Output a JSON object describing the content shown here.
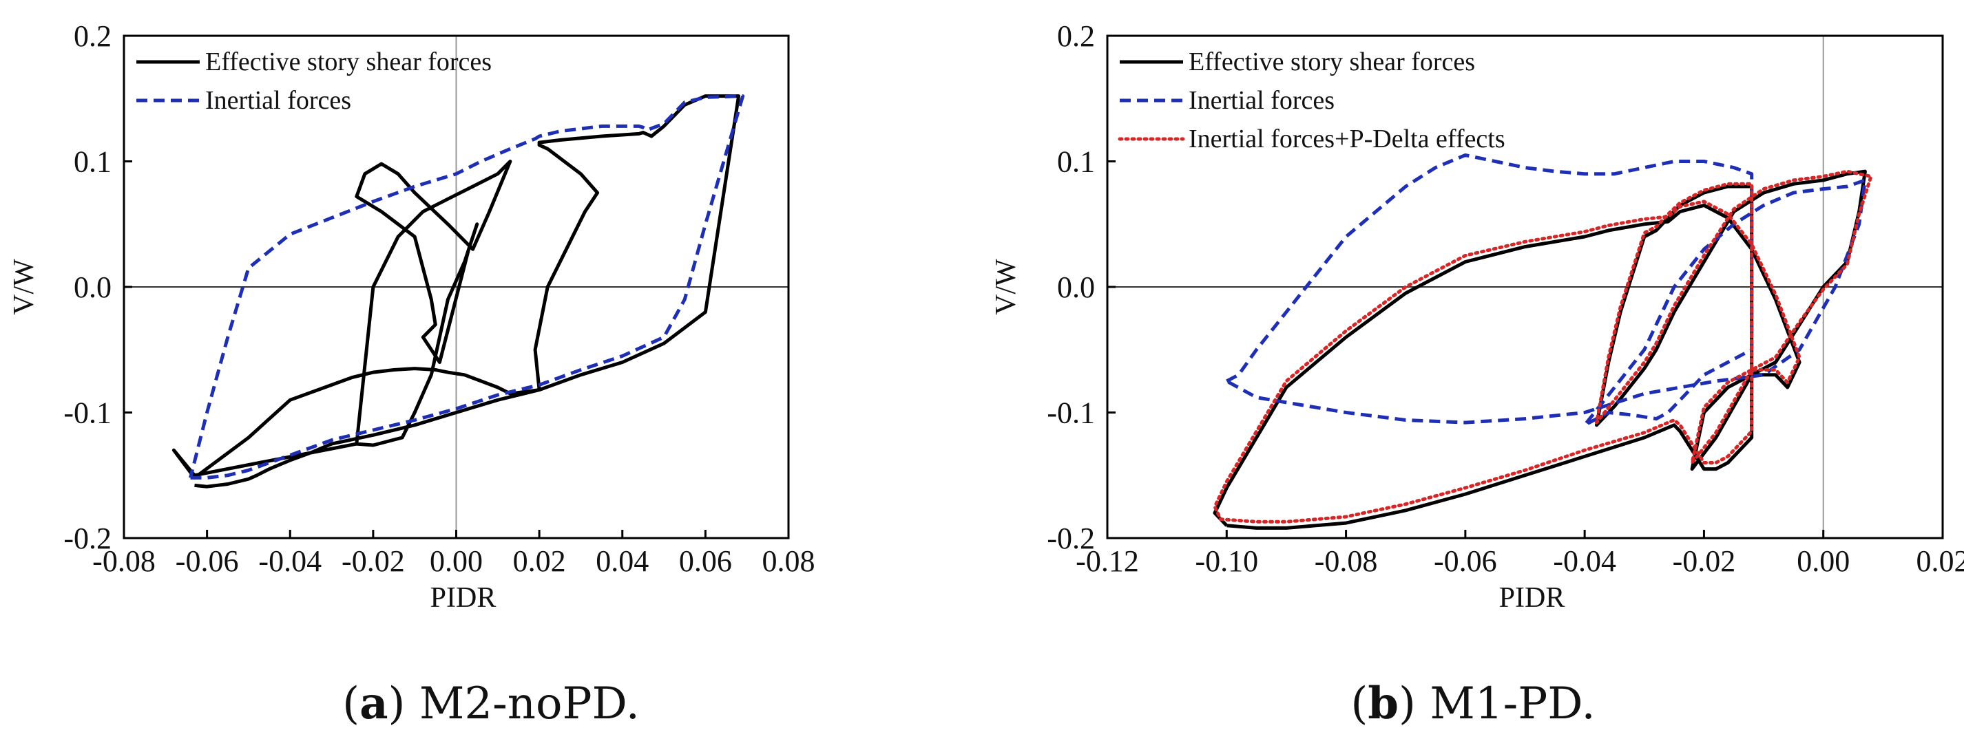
{
  "chart_data": [
    {
      "id": "a",
      "type": "line",
      "caption_letter": "a",
      "caption_text": "M2-noPD.",
      "xlabel": "PIDR",
      "ylabel": "V/W",
      "xlim": [
        -0.08,
        0.08
      ],
      "ylim": [
        -0.2,
        0.2
      ],
      "xticks": [
        -0.08,
        -0.06,
        -0.04,
        -0.02,
        0.0,
        0.02,
        0.04,
        0.06,
        0.08
      ],
      "xtick_labels": [
        "-0.08",
        "-0.06",
        "-0.04",
        "-0.02",
        "0.00",
        "0.02",
        "0.04",
        "0.06",
        "0.08"
      ],
      "yticks": [
        -0.2,
        -0.1,
        0.0,
        0.1,
        0.2
      ],
      "ytick_labels": [
        "-0.2",
        "-0.1",
        "0.0",
        "0.1",
        "0.2"
      ],
      "legend_position": "top-left",
      "series": [
        {
          "name": "Effective story shear forces",
          "color": "#000000",
          "style": "solid",
          "x": [
            -0.063,
            -0.06,
            -0.055,
            -0.05,
            -0.048,
            -0.045,
            -0.04,
            -0.035,
            -0.03,
            -0.02,
            -0.01,
            0.0,
            0.01,
            0.02,
            0.03,
            0.04,
            0.05,
            0.06,
            0.068,
            0.06,
            0.055,
            0.05,
            0.047,
            0.045,
            0.044,
            0.035,
            0.025,
            0.02,
            0.02,
            0.022,
            0.026,
            0.03,
            0.034,
            0.031,
            0.028,
            0.022,
            0.019,
            0.02,
            0.013,
            0.01,
            0.006,
            0.002,
            -0.002,
            -0.005,
            -0.01,
            -0.015,
            -0.02,
            -0.025,
            -0.03,
            -0.04,
            -0.05,
            -0.063,
            -0.068,
            -0.063,
            -0.024,
            -0.02,
            -0.013,
            -0.01,
            -0.006,
            -0.004,
            -0.002,
            0.002,
            0.005,
            0.003,
            -0.004,
            -0.008,
            -0.005,
            -0.006,
            -0.01,
            -0.018,
            -0.024,
            -0.022,
            -0.018,
            -0.014,
            -0.01,
            -0.002,
            0.004,
            0.008,
            0.013,
            0.01,
            0.004,
            -0.002,
            -0.008,
            -0.014,
            -0.02,
            -0.024
          ],
          "y": [
            -0.158,
            -0.159,
            -0.157,
            -0.153,
            -0.15,
            -0.145,
            -0.138,
            -0.132,
            -0.125,
            -0.118,
            -0.11,
            -0.1,
            -0.09,
            -0.082,
            -0.07,
            -0.06,
            -0.045,
            -0.02,
            0.152,
            0.152,
            0.145,
            0.128,
            0.12,
            0.123,
            0.122,
            0.12,
            0.117,
            0.115,
            0.113,
            0.11,
            0.1,
            0.09,
            0.075,
            0.06,
            0.04,
            0.0,
            -0.05,
            -0.082,
            -0.085,
            -0.08,
            -0.075,
            -0.07,
            -0.068,
            -0.066,
            -0.065,
            -0.066,
            -0.068,
            -0.072,
            -0.078,
            -0.09,
            -0.12,
            -0.152,
            -0.13,
            -0.15,
            -0.125,
            -0.126,
            -0.12,
            -0.1,
            -0.07,
            -0.04,
            -0.01,
            0.02,
            0.05,
            0.03,
            -0.06,
            -0.04,
            -0.03,
            -0.01,
            0.04,
            0.06,
            0.072,
            0.09,
            0.098,
            0.09,
            0.075,
            0.05,
            0.03,
            0.06,
            0.1,
            0.09,
            0.08,
            0.07,
            0.06,
            0.04,
            0.0,
            -0.125
          ]
        },
        {
          "name": "Inertial forces",
          "color": "#1f2fb4",
          "style": "dashed",
          "x": [
            -0.064,
            -0.06,
            -0.055,
            -0.05,
            -0.045,
            -0.04,
            -0.035,
            -0.03,
            -0.02,
            -0.01,
            0.0,
            0.01,
            0.02,
            0.03,
            0.04,
            0.05,
            0.055,
            0.06,
            0.069,
            0.06,
            0.055,
            0.05,
            0.046,
            0.045,
            0.044,
            0.035,
            0.025,
            0.02,
            0.019,
            0.013,
            0.006,
            0.0,
            -0.01,
            -0.02,
            -0.03,
            -0.04,
            -0.05,
            -0.055,
            -0.06,
            -0.064
          ],
          "y": [
            -0.152,
            -0.152,
            -0.15,
            -0.146,
            -0.14,
            -0.134,
            -0.128,
            -0.122,
            -0.114,
            -0.106,
            -0.097,
            -0.086,
            -0.078,
            -0.066,
            -0.055,
            -0.04,
            -0.01,
            0.05,
            0.152,
            0.151,
            0.147,
            0.13,
            0.125,
            0.127,
            0.128,
            0.128,
            0.124,
            0.12,
            0.118,
            0.11,
            0.1,
            0.09,
            0.08,
            0.068,
            0.055,
            0.042,
            0.015,
            -0.04,
            -0.1,
            -0.152
          ]
        }
      ]
    },
    {
      "id": "b",
      "type": "line",
      "caption_letter": "b",
      "caption_text": "M1-PD.",
      "xlabel": "PIDR",
      "ylabel": "V/W",
      "xlim": [
        -0.12,
        0.02
      ],
      "ylim": [
        -0.2,
        0.2
      ],
      "xticks": [
        -0.12,
        -0.1,
        -0.08,
        -0.06,
        -0.04,
        -0.02,
        0.0,
        0.02
      ],
      "xtick_labels": [
        "-0.12",
        "-0.10",
        "-0.08",
        "-0.06",
        "-0.04",
        "-0.02",
        "0.00",
        "0.02"
      ],
      "yticks": [
        -0.2,
        -0.1,
        0.0,
        0.1,
        0.2
      ],
      "ytick_labels": [
        "-0.2",
        "-0.1",
        "0.0",
        "0.1",
        "0.2"
      ],
      "legend_position": "top-left",
      "series": [
        {
          "name": "Effective story shear forces",
          "color": "#000000",
          "style": "solid",
          "x": [
            -0.1,
            -0.095,
            -0.09,
            -0.08,
            -0.07,
            -0.06,
            -0.05,
            -0.04,
            -0.03,
            -0.026,
            -0.025,
            -0.024,
            -0.02,
            -0.018,
            -0.016,
            -0.012,
            -0.012,
            -0.016,
            -0.02,
            -0.024,
            -0.026,
            -0.028,
            -0.03,
            -0.034,
            -0.036,
            -0.038,
            -0.035,
            -0.03,
            -0.028,
            -0.025,
            -0.02,
            -0.015,
            -0.01,
            -0.005,
            0.0,
            0.004,
            0.007,
            0.006,
            0.004,
            0.0,
            -0.004,
            -0.008,
            -0.012,
            -0.016,
            -0.018,
            -0.02,
            -0.022,
            -0.018,
            -0.012,
            -0.008,
            -0.006,
            -0.004,
            -0.008,
            -0.012,
            -0.016,
            -0.02,
            -0.024,
            -0.026,
            -0.03,
            -0.036,
            -0.04,
            -0.05,
            -0.06,
            -0.07,
            -0.08,
            -0.085,
            -0.09,
            -0.095,
            -0.1,
            -0.102,
            -0.1
          ],
          "y": [
            -0.19,
            -0.192,
            -0.192,
            -0.188,
            -0.178,
            -0.165,
            -0.15,
            -0.135,
            -0.12,
            -0.112,
            -0.11,
            -0.115,
            -0.145,
            -0.145,
            -0.14,
            -0.12,
            0.08,
            0.08,
            0.075,
            0.065,
            0.055,
            0.045,
            0.04,
            -0.02,
            -0.06,
            -0.11,
            -0.095,
            -0.065,
            -0.05,
            -0.02,
            0.02,
            0.06,
            0.075,
            0.082,
            0.085,
            0.09,
            0.092,
            0.06,
            0.02,
            0.0,
            -0.03,
            -0.06,
            -0.07,
            -0.08,
            -0.09,
            -0.1,
            -0.145,
            -0.12,
            -0.07,
            -0.07,
            -0.08,
            -0.06,
            -0.01,
            0.03,
            0.055,
            0.065,
            0.06,
            0.052,
            0.05,
            0.045,
            0.04,
            0.032,
            0.02,
            -0.005,
            -0.04,
            -0.06,
            -0.08,
            -0.12,
            -0.16,
            -0.18,
            -0.19
          ]
        },
        {
          "name": "Inertial forces",
          "color": "#1f2fb4",
          "style": "dashed",
          "x": [
            -0.1,
            -0.098,
            -0.095,
            -0.09,
            -0.085,
            -0.08,
            -0.075,
            -0.07,
            -0.065,
            -0.06,
            -0.055,
            -0.05,
            -0.045,
            -0.04,
            -0.035,
            -0.03,
            -0.025,
            -0.02,
            -0.015,
            -0.012,
            -0.012,
            -0.016,
            -0.02,
            -0.024,
            -0.026,
            -0.028,
            -0.032,
            -0.036,
            -0.038,
            -0.04,
            -0.035,
            -0.03,
            -0.025,
            -0.02,
            -0.015,
            -0.01,
            -0.005,
            0.0,
            0.004,
            0.007,
            0.006,
            0.002,
            -0.004,
            -0.01,
            -0.018,
            -0.024,
            -0.03,
            -0.04,
            -0.05,
            -0.06,
            -0.07,
            -0.08,
            -0.09,
            -0.095,
            -0.1
          ],
          "y": [
            -0.075,
            -0.07,
            -0.05,
            -0.02,
            0.01,
            0.04,
            0.06,
            0.08,
            0.095,
            0.105,
            0.1,
            0.095,
            0.092,
            0.09,
            0.09,
            0.095,
            0.1,
            0.1,
            0.095,
            0.09,
            -0.05,
            -0.06,
            -0.07,
            -0.09,
            -0.1,
            -0.105,
            -0.102,
            -0.1,
            -0.105,
            -0.11,
            -0.08,
            -0.05,
            0.0,
            0.03,
            0.05,
            0.065,
            0.075,
            0.078,
            0.08,
            0.085,
            0.05,
            0.0,
            -0.05,
            -0.07,
            -0.075,
            -0.08,
            -0.085,
            -0.1,
            -0.105,
            -0.108,
            -0.106,
            -0.1,
            -0.092,
            -0.088,
            -0.075
          ]
        },
        {
          "name": "Inertial forces+P-Delta effects",
          "color": "#d62728",
          "style": "dotted",
          "x": [
            -0.101,
            -0.095,
            -0.09,
            -0.08,
            -0.07,
            -0.06,
            -0.05,
            -0.04,
            -0.03,
            -0.026,
            -0.025,
            -0.024,
            -0.02,
            -0.018,
            -0.016,
            -0.012,
            -0.012,
            -0.016,
            -0.02,
            -0.024,
            -0.026,
            -0.028,
            -0.03,
            -0.034,
            -0.036,
            -0.038,
            -0.035,
            -0.03,
            -0.028,
            -0.025,
            -0.02,
            -0.015,
            -0.01,
            -0.005,
            0.0,
            0.004,
            0.008,
            0.006,
            0.004,
            0.0,
            -0.004,
            -0.008,
            -0.012,
            -0.016,
            -0.018,
            -0.02,
            -0.022,
            -0.018,
            -0.012,
            -0.008,
            -0.006,
            -0.004,
            -0.008,
            -0.012,
            -0.016,
            -0.02,
            -0.024,
            -0.026,
            -0.03,
            -0.036,
            -0.04,
            -0.05,
            -0.06,
            -0.07,
            -0.08,
            -0.085,
            -0.09,
            -0.095,
            -0.1,
            -0.102,
            -0.101
          ],
          "y": [
            -0.185,
            -0.187,
            -0.187,
            -0.183,
            -0.173,
            -0.16,
            -0.146,
            -0.13,
            -0.116,
            -0.108,
            -0.106,
            -0.11,
            -0.14,
            -0.14,
            -0.135,
            -0.115,
            0.082,
            0.082,
            0.077,
            0.067,
            0.058,
            0.048,
            0.043,
            -0.016,
            -0.056,
            -0.108,
            -0.09,
            -0.06,
            -0.045,
            -0.015,
            0.025,
            0.062,
            0.078,
            0.085,
            0.088,
            0.092,
            0.088,
            0.058,
            0.018,
            -0.002,
            -0.028,
            -0.056,
            -0.066,
            -0.076,
            -0.086,
            -0.096,
            -0.14,
            -0.116,
            -0.066,
            -0.066,
            -0.076,
            -0.056,
            -0.006,
            0.034,
            0.058,
            0.068,
            0.064,
            0.056,
            0.054,
            0.049,
            0.044,
            0.036,
            0.025,
            0.0,
            -0.035,
            -0.055,
            -0.075,
            -0.115,
            -0.155,
            -0.175,
            -0.185
          ]
        }
      ]
    }
  ]
}
